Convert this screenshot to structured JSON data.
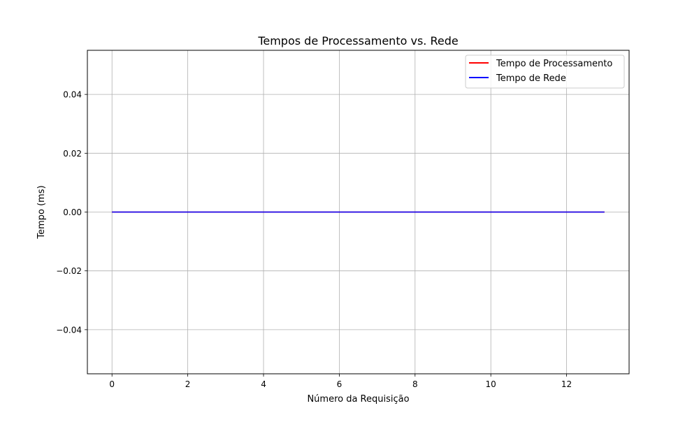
{
  "chart_data": {
    "type": "line",
    "title": "Tempos de Processamento vs. Rede",
    "xlabel": "Número da Requisição",
    "ylabel": "Tempo (ms)",
    "xlim": [
      -0.65,
      13.65
    ],
    "ylim": [
      -0.055,
      0.055
    ],
    "x_ticks": [
      0,
      2,
      4,
      6,
      8,
      10,
      12
    ],
    "x_tick_labels": [
      "0",
      "2",
      "4",
      "6",
      "8",
      "10",
      "12"
    ],
    "y_ticks": [
      0.04,
      0.02,
      0.0,
      -0.02,
      -0.04
    ],
    "y_tick_labels": [
      "0.04",
      "0.02",
      "0.00",
      "−0.02",
      "−0.04"
    ],
    "grid": true,
    "legend_position": "upper right",
    "x": [
      0,
      1,
      2,
      3,
      4,
      5,
      6,
      7,
      8,
      9,
      10,
      11,
      12,
      13
    ],
    "series": [
      {
        "name": "Tempo de Processamento",
        "color": "#ff0000",
        "values": [
          0,
          0,
          0,
          0,
          0,
          0,
          0,
          0,
          0,
          0,
          0,
          0,
          0,
          0
        ]
      },
      {
        "name": "Tempo de Rede",
        "color": "#0000ff",
        "values": [
          0,
          0,
          0,
          0,
          0,
          0,
          0,
          0,
          0,
          0,
          0,
          0,
          0,
          0
        ]
      }
    ]
  }
}
